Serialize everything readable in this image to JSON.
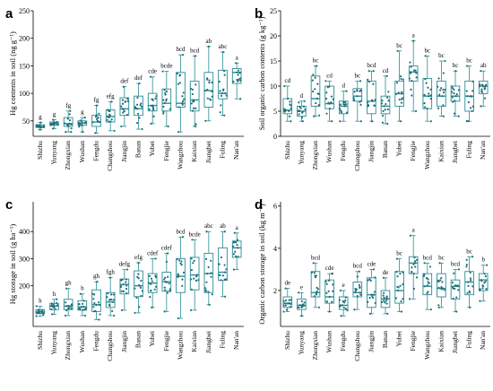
{
  "colors": {
    "box": "#2a8c95",
    "point": "#1f6f78",
    "axis": "#000000"
  },
  "chart_data": [
    {
      "panel": "a",
      "type": "box",
      "ylabel": "Hg contents in soil (ng g⁻¹)",
      "ylim": [
        22,
        250
      ],
      "yticks": [
        50,
        100,
        150,
        200,
        250
      ],
      "categories": [
        "Shizhu",
        "Yunyang",
        "Zhongxian",
        "Wushan",
        "Fengdu",
        "Changshou",
        "Jiangjin",
        "Banan",
        "Yubei",
        "Fengjie",
        "Wangzhou",
        "Kaixian",
        "Jiangbei",
        "Fuling",
        "Nan'an"
      ],
      "boxes": [
        {
          "min": 34,
          "q1": 38,
          "median": 40,
          "q3": 43,
          "max": 47,
          "sig": "g"
        },
        {
          "min": 36,
          "q1": 42,
          "median": 45,
          "q3": 48,
          "max": 52,
          "sig": "g"
        },
        {
          "min": 30,
          "q1": 40,
          "median": 45,
          "q3": 56,
          "max": 68,
          "sig": "fg"
        },
        {
          "min": 30,
          "q1": 42,
          "median": 46,
          "q3": 50,
          "max": 56,
          "sig": "g"
        },
        {
          "min": 28,
          "q1": 40,
          "median": 48,
          "q3": 60,
          "max": 78,
          "sig": "fg"
        },
        {
          "min": 32,
          "q1": 48,
          "median": 58,
          "q3": 70,
          "max": 85,
          "sig": "efg"
        },
        {
          "min": 40,
          "q1": 60,
          "median": 72,
          "q3": 92,
          "max": 112,
          "sig": "def"
        },
        {
          "min": 35,
          "q1": 60,
          "median": 72,
          "q3": 95,
          "max": 118,
          "sig": "def"
        },
        {
          "min": 45,
          "q1": 68,
          "median": 78,
          "q3": 100,
          "max": 130,
          "sig": "cde"
        },
        {
          "min": 40,
          "q1": 68,
          "median": 82,
          "q3": 108,
          "max": 140,
          "sig": "bcde"
        },
        {
          "min": 30,
          "q1": 75,
          "median": 82,
          "q3": 138,
          "max": 170,
          "sig": "bcd"
        },
        {
          "min": 40,
          "q1": 68,
          "median": 88,
          "q3": 122,
          "max": 168,
          "sig": "bcd"
        },
        {
          "min": 50,
          "q1": 75,
          "median": 105,
          "q3": 138,
          "max": 185,
          "sig": "ab"
        },
        {
          "min": 60,
          "q1": 90,
          "median": 100,
          "q3": 142,
          "max": 175,
          "sig": "abc"
        },
        {
          "min": 90,
          "q1": 118,
          "median": 138,
          "q3": 145,
          "max": 155,
          "sig": "a"
        }
      ]
    },
    {
      "panel": "b",
      "type": "box",
      "ylabel": "Soil organic carbon contents (g kg⁻¹)",
      "ylim": [
        0,
        25
      ],
      "yticks": [
        0,
        5,
        10,
        15,
        20,
        25
      ],
      "categories": [
        "Shizhu",
        "Yunyang",
        "Zhongxian",
        "Wushan",
        "Fengdu",
        "Changshou",
        "Jiangjin",
        "Banan",
        "Yubei",
        "Fengjie",
        "Wangzhou",
        "Kaixian",
        "Jiangbei",
        "Fuling",
        "Nan'an"
      ],
      "boxes": [
        {
          "min": 3,
          "q1": 4.5,
          "median": 5.2,
          "q3": 7.5,
          "max": 10,
          "sig": "cd"
        },
        {
          "min": 3,
          "q1": 4,
          "median": 5,
          "q3": 6,
          "max": 7,
          "sig": "d"
        },
        {
          "min": 4,
          "q1": 6,
          "median": 7.5,
          "q3": 12,
          "max": 14,
          "sig": "bc"
        },
        {
          "min": 3,
          "q1": 5.5,
          "median": 6.5,
          "q3": 10,
          "max": 11,
          "sig": "cd"
        },
        {
          "min": 3,
          "q1": 4.5,
          "median": 6,
          "q3": 7,
          "max": 9,
          "sig": "d"
        },
        {
          "min": 3,
          "q1": 7,
          "median": 8,
          "q3": 9.5,
          "max": 11,
          "sig": "bc"
        },
        {
          "min": 3,
          "q1": 4.5,
          "median": 7,
          "q3": 11,
          "max": 13,
          "sig": "bcd"
        },
        {
          "min": 2.5,
          "q1": 4.5,
          "median": 6,
          "q3": 8,
          "max": 12,
          "sig": "cd"
        },
        {
          "min": 3,
          "q1": 6,
          "median": 8.5,
          "q3": 11,
          "max": 17,
          "sig": "bc"
        },
        {
          "min": 5,
          "q1": 11,
          "median": 12.8,
          "q3": 14,
          "max": 19,
          "sig": "a"
        },
        {
          "min": 3,
          "q1": 5.5,
          "median": 8,
          "q3": 11.5,
          "max": 16,
          "sig": "bc"
        },
        {
          "min": 4,
          "q1": 6,
          "median": 8,
          "q3": 11,
          "max": 15,
          "sig": "bc"
        },
        {
          "min": 4,
          "q1": 7,
          "median": 8,
          "q3": 10,
          "max": 13,
          "sig": "bc"
        },
        {
          "min": 3,
          "q1": 5,
          "median": 8,
          "q3": 11,
          "max": 14,
          "sig": "bc"
        },
        {
          "min": 6,
          "q1": 8.5,
          "median": 10,
          "q3": 11,
          "max": 13,
          "sig": "ab"
        }
      ]
    },
    {
      "panel": "c",
      "type": "box",
      "ylabel": "Hg storage in soil (g ha⁻¹)",
      "ylim": [
        50,
        510
      ],
      "yticks": [
        200,
        300,
        400
      ],
      "categories": [
        "Shizhu",
        "Yunyang",
        "Zhongxian",
        "Wushan",
        "Fengdu",
        "Changshou",
        "Jiangjin",
        "Banan",
        "Yubei",
        "Fengjie",
        "Wangzhou",
        "Kaixian",
        "Jiangbei",
        "Fuling",
        "Nan'an"
      ],
      "boxes": [
        {
          "min": 88,
          "q1": 98,
          "median": 104,
          "q3": 112,
          "max": 125,
          "sig": "h"
        },
        {
          "min": 95,
          "q1": 112,
          "median": 125,
          "q3": 135,
          "max": 150,
          "sig": "h"
        },
        {
          "min": 90,
          "q1": 112,
          "median": 125,
          "q3": 150,
          "max": 190,
          "sig": "gh"
        },
        {
          "min": 90,
          "q1": 110,
          "median": 122,
          "q3": 145,
          "max": 170,
          "sig": "h"
        },
        {
          "min": 75,
          "q1": 105,
          "median": 130,
          "q3": 185,
          "max": 215,
          "sig": "gh"
        },
        {
          "min": 90,
          "q1": 120,
          "median": 140,
          "q3": 175,
          "max": 230,
          "sig": "fgh"
        },
        {
          "min": 110,
          "q1": 170,
          "median": 205,
          "q3": 225,
          "max": 260,
          "sig": "defg"
        },
        {
          "min": 100,
          "q1": 160,
          "median": 200,
          "q3": 255,
          "max": 285,
          "sig": "efg"
        },
        {
          "min": 120,
          "q1": 175,
          "median": 210,
          "q3": 245,
          "max": 300,
          "sig": "cdef"
        },
        {
          "min": 105,
          "q1": 180,
          "median": 215,
          "q3": 250,
          "max": 320,
          "sig": "cdef"
        },
        {
          "min": 80,
          "q1": 175,
          "median": 235,
          "q3": 300,
          "max": 380,
          "sig": "bcd"
        },
        {
          "min": 110,
          "q1": 185,
          "median": 240,
          "q3": 305,
          "max": 370,
          "sig": "bcde"
        },
        {
          "min": 130,
          "q1": 175,
          "median": 245,
          "q3": 320,
          "max": 400,
          "sig": "abc"
        },
        {
          "min": 160,
          "q1": 220,
          "median": 250,
          "q3": 340,
          "max": 400,
          "sig": "ab"
        },
        {
          "min": 260,
          "q1": 305,
          "median": 340,
          "q3": 365,
          "max": 395,
          "sig": "a"
        }
      ]
    },
    {
      "panel": "d",
      "type": "box",
      "ylabel": "Organic carbon storage in soil (kg m⁻²)",
      "ylim": [
        0.3,
        6.2
      ],
      "yticks": [
        2,
        4,
        6
      ],
      "categories": [
        "Shizhu",
        "Yunyang",
        "Zhongxian",
        "Wushan",
        "Fengdu",
        "Changshou",
        "Jiangjin",
        "Banan",
        "Yubei",
        "Fengjie",
        "Wangzhou",
        "Kaixian",
        "Jiangbei",
        "Fuling",
        "Nan'an"
      ],
      "boxes": [
        {
          "min": 1.0,
          "q1": 1.2,
          "median": 1.4,
          "q3": 1.7,
          "max": 2.1,
          "sig": "de"
        },
        {
          "min": 0.8,
          "q1": 1.1,
          "median": 1.3,
          "q3": 1.6,
          "max": 1.9,
          "sig": "e"
        },
        {
          "min": 1.2,
          "q1": 1.7,
          "median": 1.9,
          "q3": 2.9,
          "max": 3.3,
          "sig": "bcd"
        },
        {
          "min": 1.0,
          "q1": 1.4,
          "median": 1.7,
          "q3": 2.5,
          "max": 2.8,
          "sig": "cde"
        },
        {
          "min": 0.8,
          "q1": 1.1,
          "median": 1.3,
          "q3": 1.7,
          "max": 2.0,
          "sig": "e"
        },
        {
          "min": 1.1,
          "q1": 1.7,
          "median": 1.9,
          "q3": 2.4,
          "max": 2.9,
          "sig": "bcd"
        },
        {
          "min": 0.9,
          "q1": 1.2,
          "median": 1.8,
          "q3": 2.6,
          "max": 3.0,
          "sig": "cde"
        },
        {
          "min": 0.9,
          "q1": 1.2,
          "median": 1.6,
          "q3": 2.0,
          "max": 2.6,
          "sig": "de"
        },
        {
          "min": 1.0,
          "q1": 1.4,
          "median": 2.0,
          "q3": 2.9,
          "max": 3.5,
          "sig": "bc"
        },
        {
          "min": 1.6,
          "q1": 2.8,
          "median": 3.3,
          "q3": 3.6,
          "max": 4.6,
          "sig": "a"
        },
        {
          "min": 1.1,
          "q1": 1.8,
          "median": 2.2,
          "q3": 2.8,
          "max": 3.3,
          "sig": "bcd"
        },
        {
          "min": 1.2,
          "q1": 1.7,
          "median": 2.1,
          "q3": 2.8,
          "max": 3.3,
          "sig": "bc"
        },
        {
          "min": 1.0,
          "q1": 1.6,
          "median": 2.2,
          "q3": 2.5,
          "max": 3.0,
          "sig": "bcd"
        },
        {
          "min": 1.2,
          "q1": 1.8,
          "median": 2.4,
          "q3": 2.9,
          "max": 3.6,
          "sig": "bc"
        },
        {
          "min": 1.5,
          "q1": 2.0,
          "median": 2.5,
          "q3": 2.8,
          "max": 3.2,
          "sig": "b"
        }
      ]
    }
  ]
}
